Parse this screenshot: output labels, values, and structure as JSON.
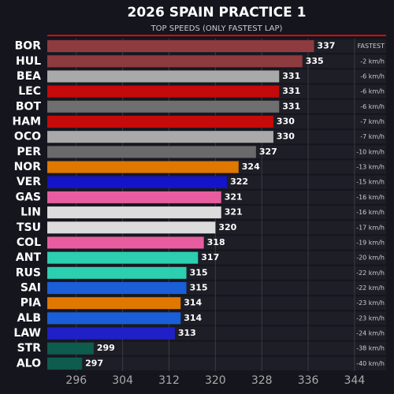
{
  "chart_data": {
    "type": "bar",
    "title": "2026 SPAIN PRACTICE 1",
    "subtitle": "TOP SPEEDS (ONLY FASTEST LAP)",
    "categories": [
      "BOR",
      "HUL",
      "BEA",
      "LEC",
      "BOT",
      "HAM",
      "OCO",
      "PER",
      "NOR",
      "VER",
      "GAS",
      "LIN",
      "TSU",
      "COL",
      "ANT",
      "RUS",
      "SAI",
      "PIA",
      "ALB",
      "LAW",
      "STR",
      "ALO"
    ],
    "values": [
      337,
      335,
      331,
      331,
      331,
      330,
      330,
      327,
      324,
      322,
      321,
      321,
      320,
      318,
      317,
      315,
      315,
      314,
      314,
      313,
      299,
      297
    ],
    "colors": [
      "#8e3b40",
      "#8e3b40",
      "#a9a9a9",
      "#c40a0a",
      "#6f6f6f",
      "#c40a0a",
      "#a9a9a9",
      "#6a6a6a",
      "#e07800",
      "#1414c8",
      "#e85d9f",
      "#dcdcdc",
      "#dcdcdc",
      "#e85d9f",
      "#2ccfb0",
      "#2ccfb0",
      "#1a5ed8",
      "#e07800",
      "#1a5ed8",
      "#2020c8",
      "#0e5c4e",
      "#0e5c4e"
    ],
    "annotations": [
      "FASTEST",
      "-2 km/h",
      "-6 km/h",
      "-6 km/h",
      "-6 km/h",
      "-7 km/h",
      "-7 km/h",
      "-10 km/h",
      "-13 km/h",
      "-15 km/h",
      "-16 km/h",
      "-16 km/h",
      "-17 km/h",
      "-19 km/h",
      "-20 km/h",
      "-22 km/h",
      "-22 km/h",
      "-23 km/h",
      "-23 km/h",
      "-24 km/h",
      "-38 km/h",
      "-40 km/h"
    ],
    "xlim": [
      291,
      347
    ],
    "xticks": [
      296,
      304,
      312,
      320,
      328,
      336,
      344
    ],
    "grid": true
  }
}
